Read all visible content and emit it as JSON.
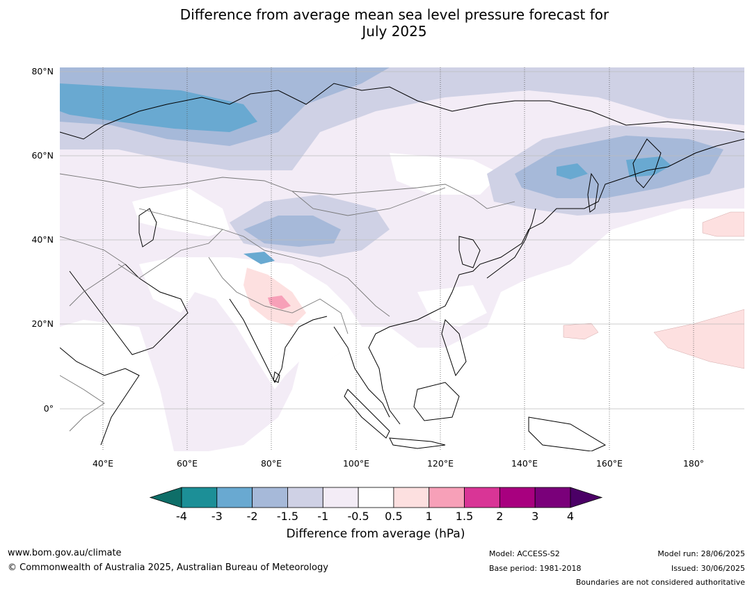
{
  "title_line1": "Difference from average mean sea level pressure forecast for",
  "title_line2": "July 2025",
  "lat_labels": [
    "80°N",
    "60°N",
    "40°N",
    "20°N",
    "0°"
  ],
  "lon_labels": [
    "40°E",
    "60°E",
    "80°E",
    "100°E",
    "120°E",
    "140°E",
    "160°E",
    "180°"
  ],
  "colorbar": {
    "ticks": [
      "-4",
      "-3",
      "-2",
      "-1.5",
      "-1",
      "-0.5",
      "0.5",
      "1",
      "1.5",
      "2",
      "3",
      "4"
    ],
    "colors": [
      "#0e6e68",
      "#1c8f97",
      "#69a9d1",
      "#a6b9d9",
      "#cfd1e5",
      "#f3ecf6",
      "#ffffff",
      "#fde0e0",
      "#f7a0b8",
      "#d93596",
      "#a8007f",
      "#7a007a",
      "#4b0066"
    ],
    "label": "Difference from average (hPa)"
  },
  "footer": {
    "url": "www.bom.gov.au/climate",
    "copyright": "© Commonwealth of Australia 2025, Australian Bureau of Meteorology",
    "model": "Model: ACCESS-S2",
    "base_period": "Base period: 1981-2018",
    "model_run": "Model run: 28/06/2025",
    "issued": "Issued: 30/06/2025",
    "disclaimer": "Boundaries are not considered authoritative"
  }
}
